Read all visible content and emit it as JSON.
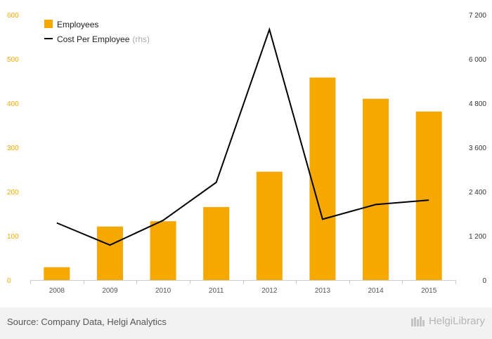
{
  "chart_data": {
    "type": "bar",
    "categories": [
      "2008",
      "2009",
      "2010",
      "2011",
      "2012",
      "2013",
      "2014",
      "2015"
    ],
    "series": [
      {
        "name": "Employees",
        "type": "bar",
        "axis": "left",
        "color": "#f5a800",
        "values": [
          29,
          121,
          133,
          165,
          245,
          458,
          410,
          381
        ]
      },
      {
        "name": "Cost Per Employee",
        "name_suffix": "(rhs)",
        "type": "line",
        "axis": "right",
        "color": "#000000",
        "values": [
          1550,
          950,
          1620,
          2650,
          6800,
          1650,
          2050,
          2170
        ]
      }
    ],
    "y_left": {
      "range": [
        0,
        600
      ],
      "ticks": [
        0,
        100,
        200,
        300,
        400,
        500,
        600
      ],
      "tick_labels": [
        "0",
        "100",
        "200",
        "300",
        "400",
        "500",
        "600"
      ]
    },
    "y_right": {
      "range": [
        0,
        7200
      ],
      "ticks": [
        0,
        1200,
        2400,
        3600,
        4800,
        6000,
        7200
      ],
      "tick_labels": [
        "0",
        "1 200",
        "2 400",
        "3 600",
        "4 800",
        "6 000",
        "7 200"
      ]
    },
    "grid": false,
    "legend_position": "top-left"
  },
  "footer": {
    "source": "Source: Company Data, Helgi Analytics",
    "brand": "HelgiLibrary"
  }
}
